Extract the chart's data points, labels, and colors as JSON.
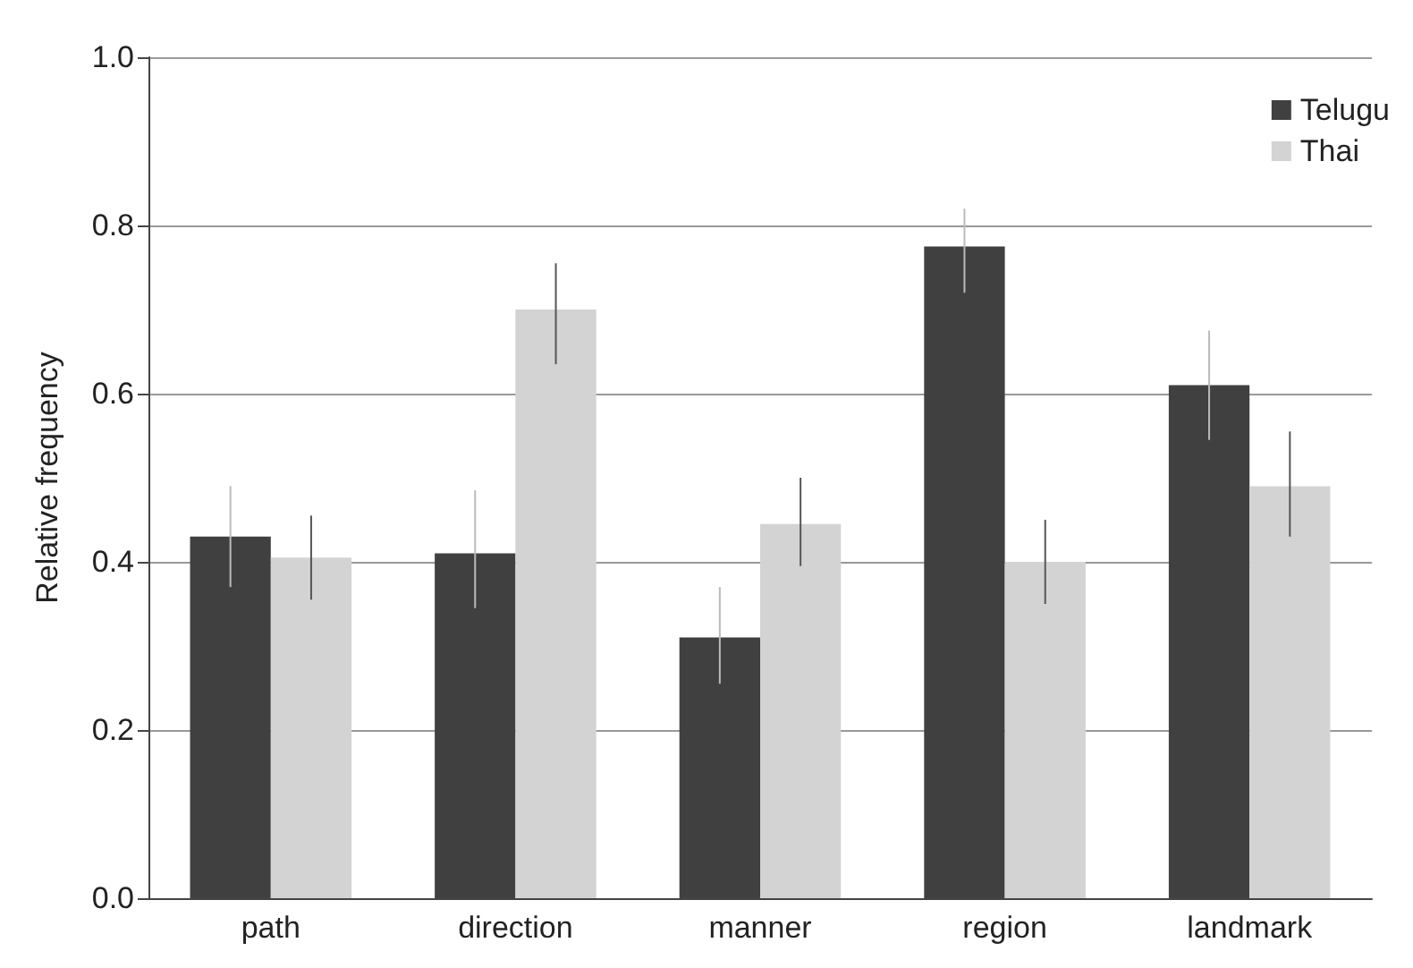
{
  "chart_data": {
    "type": "bar",
    "ylabel": "Relative frequency",
    "categories": [
      "path",
      "direction",
      "manner",
      "region",
      "landmark"
    ],
    "series": [
      {
        "name": "Telugu",
        "color": "#404040",
        "values": [
          0.43,
          0.41,
          0.31,
          0.775,
          0.61
        ],
        "errors": [
          [
            0.37,
            0.49
          ],
          [
            0.345,
            0.485
          ],
          [
            0.255,
            0.37
          ],
          [
            0.72,
            0.82
          ],
          [
            0.545,
            0.675
          ]
        ]
      },
      {
        "name": "Thai",
        "color": "#d3d3d3",
        "values": [
          0.405,
          0.7,
          0.445,
          0.4,
          0.49
        ],
        "errors": [
          [
            0.355,
            0.455
          ],
          [
            0.635,
            0.755
          ],
          [
            0.395,
            0.5
          ],
          [
            0.35,
            0.45
          ],
          [
            0.43,
            0.555
          ]
        ]
      }
    ],
    "ylim": [
      0,
      1
    ],
    "yticks": [
      {
        "value": 0,
        "label": "0.0"
      },
      0.2,
      0.4,
      0.6,
      0.8,
      {
        "value": 1,
        "label": "1.0"
      }
    ],
    "grid": "y",
    "legend": "top right"
  }
}
